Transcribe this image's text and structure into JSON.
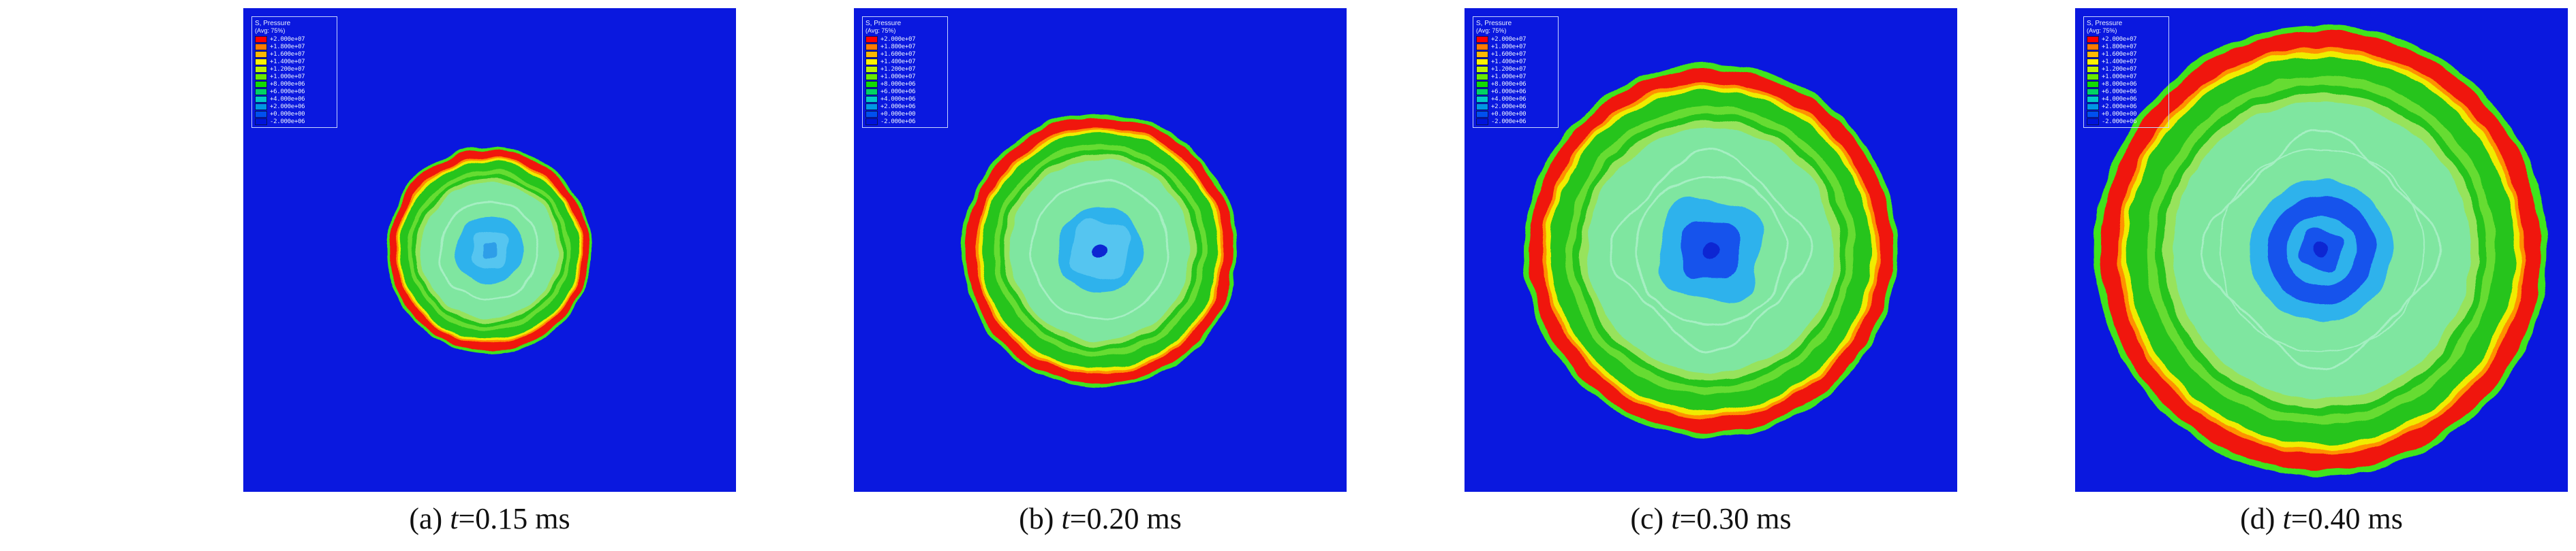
{
  "colors": {
    "bg": "#0A18DF",
    "halo": "#3FE41E",
    "red": "#F0170A",
    "orange": "#FF9100",
    "yellow": "#F0EC00",
    "green": "#26C41A",
    "green2": "#66DC30",
    "green3": "#97E35C",
    "mint": "#7FE6A0",
    "mint2": "#A5EFC2",
    "cyan": "#2FB2EC",
    "cyan2": "#55C5F0",
    "blueMid": "#2E9EE8",
    "blue": "#1452EC",
    "darkblue": "#0A28D2"
  },
  "legend": {
    "title1": "S, Pressure",
    "title2": "(Avg: 75%)",
    "items": [
      {
        "c": "#FF0000",
        "v": "+2.000e+07"
      },
      {
        "c": "#FF7B00",
        "v": "+1.800e+07"
      },
      {
        "c": "#FFB800",
        "v": "+1.600e+07"
      },
      {
        "c": "#FFF200",
        "v": "+1.400e+07"
      },
      {
        "c": "#BEF200",
        "v": "+1.200e+07"
      },
      {
        "c": "#66E900",
        "v": "+1.000e+07"
      },
      {
        "c": "#12DC00",
        "v": "+8.000e+06"
      },
      {
        "c": "#00D264",
        "v": "+6.000e+06"
      },
      {
        "c": "#00C8C8",
        "v": "+4.000e+06"
      },
      {
        "c": "#0096E6",
        "v": "+2.000e+06"
      },
      {
        "c": "#0050F0",
        "v": "+0.000e+00"
      },
      {
        "c": "#0014DC",
        "v": "-2.000e+06"
      }
    ]
  },
  "base_shapes": [
    {
      "t": "c",
      "f": 1.0,
      "fill": "halo"
    },
    {
      "t": "c",
      "f": 0.972,
      "fill": "red"
    },
    {
      "t": "c",
      "f": 0.9,
      "fill": "orange"
    },
    {
      "t": "c",
      "f": 0.882,
      "fill": "yellow"
    },
    {
      "t": "c",
      "f": 0.858,
      "fill": "green"
    },
    {
      "t": "c",
      "f": 0.772,
      "fill": "green2"
    },
    {
      "t": "c",
      "f": 0.732,
      "fill": "green"
    },
    {
      "t": "c",
      "f": 0.698,
      "fill": "green3"
    },
    {
      "t": "c",
      "f": 0.658,
      "fill": "mint"
    }
  ],
  "panels": [
    {
      "label": "(a) ",
      "var": "t",
      "rest": "=0.15 ms",
      "r": 152,
      "seed": 7,
      "shapes": [
        {
          "t": "c",
          "f": 0.48,
          "stroke": "mint2",
          "w": 3
        },
        {
          "t": "c",
          "f": 0.33,
          "fill": "cyan"
        },
        {
          "t": "sq",
          "f": 0.17,
          "rot": 8,
          "fill": "cyan2"
        },
        {
          "t": "sq",
          "f": 0.075,
          "rot": 0,
          "fill": "blueMid"
        }
      ]
    },
    {
      "label": "(b) ",
      "var": "t",
      "rest": "=0.20 ms",
      "r": 202,
      "seed": 11,
      "shapes": [
        {
          "t": "c",
          "f": 0.5,
          "stroke": "mint2",
          "w": 3
        },
        {
          "t": "c",
          "f": 0.31,
          "fill": "cyan"
        },
        {
          "t": "sq",
          "f": 0.2,
          "rot": 12,
          "fill": "cyan2"
        },
        {
          "t": "c",
          "f": 0.05,
          "fill": "darkblue"
        }
      ]
    },
    {
      "label": "(c) ",
      "var": "t",
      "rest": "=0.30 ms",
      "r": 274,
      "seed": 5,
      "shapes": [
        {
          "t": "sq",
          "f": 0.44,
          "rot": 45,
          "stroke": "mint2",
          "w": 3
        },
        {
          "t": "c",
          "f": 0.4,
          "stroke": "mint2",
          "w": 3
        },
        {
          "t": "sq",
          "f": 0.26,
          "rot": 10,
          "fill": "cyan"
        },
        {
          "t": "sq",
          "f": 0.15,
          "rot": 0,
          "fill": "blue"
        },
        {
          "t": "c",
          "f": 0.045,
          "fill": "darkblue"
        }
      ]
    },
    {
      "label": "(d) ",
      "var": "t",
      "rest": "=0.40 ms",
      "r": 332,
      "seed": 13,
      "shapes": [
        {
          "t": "sq",
          "f": 0.43,
          "rot": 45,
          "stroke": "mint2",
          "w": 3
        },
        {
          "t": "c",
          "f": 0.45,
          "stroke": "mint2",
          "w": 2
        },
        {
          "t": "c",
          "f": 0.315,
          "fill": "cyan"
        },
        {
          "t": "c",
          "f": 0.24,
          "fill": "blue"
        },
        {
          "t": "c",
          "f": 0.155,
          "fill": "cyan"
        },
        {
          "t": "sq",
          "f": 0.085,
          "rot": 20,
          "fill": "blue"
        },
        {
          "t": "c",
          "f": 0.03,
          "fill": "darkblue"
        }
      ]
    }
  ]
}
